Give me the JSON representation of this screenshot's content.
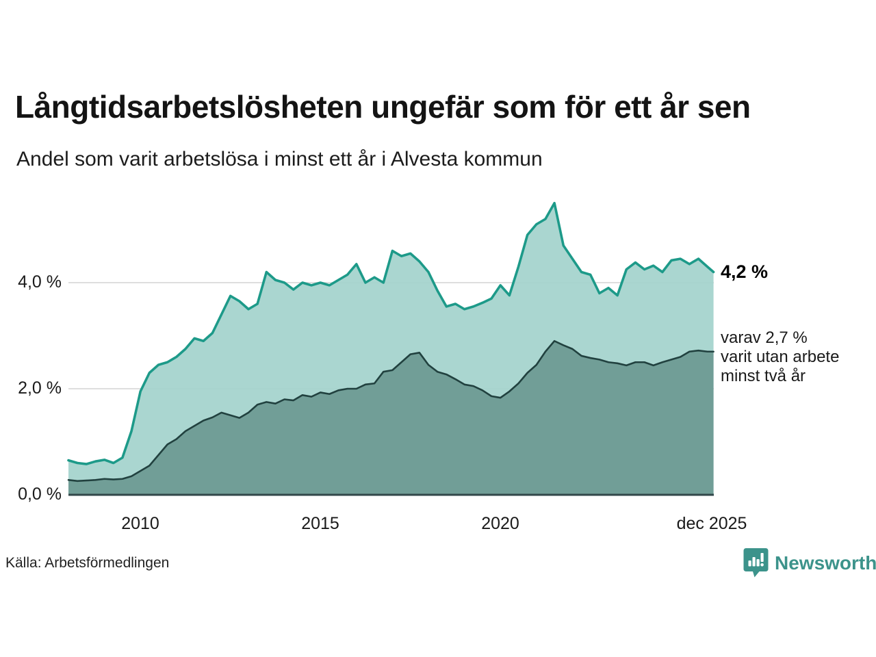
{
  "chart_data": {
    "type": "area",
    "title": "Långtidsarbetslösheten ungefär som för ett år sen",
    "subtitle": "Andel som varit arbetslösa i minst ett år i Alvesta kommun",
    "legend_position": "right-annotations",
    "grid": "horizontal-only",
    "ylim": [
      0,
      5.6
    ],
    "x_range": [
      2008,
      2025.92
    ],
    "grid_values": [
      2,
      4
    ],
    "y_ticks": [
      {
        "label": "4,0 %",
        "value": 4
      },
      {
        "label": "2,0 %",
        "value": 2
      },
      {
        "label": "0,0 %",
        "value": 0
      }
    ],
    "x_ticks": [
      {
        "label": "2010",
        "year": 2010
      },
      {
        "label": "2015",
        "year": 2015
      },
      {
        "label": "2020",
        "year": 2020
      },
      {
        "label": "dec 2025",
        "year": 2025.87
      }
    ],
    "x": [
      2008,
      2008.25,
      2008.5,
      2008.75,
      2009,
      2009.25,
      2009.5,
      2009.75,
      2010,
      2010.25,
      2010.5,
      2010.75,
      2011,
      2011.25,
      2011.5,
      2011.75,
      2012,
      2012.25,
      2012.5,
      2012.75,
      2013,
      2013.25,
      2013.5,
      2013.75,
      2014,
      2014.25,
      2014.5,
      2014.75,
      2015,
      2015.25,
      2015.5,
      2015.75,
      2016,
      2016.25,
      2016.5,
      2016.75,
      2017,
      2017.25,
      2017.5,
      2017.75,
      2018,
      2018.25,
      2018.5,
      2018.75,
      2019,
      2019.25,
      2019.5,
      2019.75,
      2020,
      2020.25,
      2020.5,
      2020.75,
      2021,
      2021.25,
      2021.5,
      2021.75,
      2022,
      2022.25,
      2022.5,
      2022.75,
      2023,
      2023.25,
      2023.5,
      2023.75,
      2024,
      2024.25,
      2024.5,
      2024.75,
      2025,
      2025.25,
      2025.5,
      2025.75,
      2025.92
    ],
    "series": [
      {
        "name": "Andel arbetslösa minst ett år",
        "end_value": 4.2,
        "values": [
          0.65,
          0.6,
          0.58,
          0.63,
          0.66,
          0.6,
          0.7,
          1.2,
          1.95,
          2.3,
          2.45,
          2.5,
          2.6,
          2.75,
          2.95,
          2.9,
          3.05,
          3.4,
          3.75,
          3.65,
          3.5,
          3.6,
          4.2,
          4.05,
          4.0,
          3.87,
          4.0,
          3.95,
          4.0,
          3.95,
          4.05,
          4.15,
          4.35,
          4.0,
          4.1,
          4.0,
          4.6,
          4.5,
          4.55,
          4.4,
          4.2,
          3.85,
          3.55,
          3.6,
          3.5,
          3.55,
          3.62,
          3.7,
          3.95,
          3.76,
          4.3,
          4.9,
          5.1,
          5.2,
          5.5,
          4.7,
          4.45,
          4.2,
          4.15,
          3.8,
          3.9,
          3.76,
          4.25,
          4.38,
          4.25,
          4.32,
          4.2,
          4.42,
          4.45,
          4.35,
          4.45,
          4.3,
          4.2
        ]
      },
      {
        "name": "Andel utan arbete minst två år",
        "end_value": 2.7,
        "values": [
          0.28,
          0.26,
          0.27,
          0.28,
          0.3,
          0.29,
          0.3,
          0.35,
          0.45,
          0.55,
          0.75,
          0.95,
          1.05,
          1.2,
          1.3,
          1.4,
          1.46,
          1.55,
          1.5,
          1.45,
          1.55,
          1.7,
          1.75,
          1.72,
          1.8,
          1.78,
          1.88,
          1.85,
          1.93,
          1.9,
          1.97,
          2.0,
          2.0,
          2.08,
          2.1,
          2.32,
          2.35,
          2.5,
          2.65,
          2.68,
          2.45,
          2.32,
          2.27,
          2.18,
          2.08,
          2.05,
          1.97,
          1.86,
          1.83,
          1.95,
          2.1,
          2.3,
          2.45,
          2.7,
          2.9,
          2.82,
          2.75,
          2.62,
          2.58,
          2.55,
          2.5,
          2.48,
          2.44,
          2.5,
          2.5,
          2.44,
          2.5,
          2.55,
          2.6,
          2.7,
          2.72,
          2.7,
          2.7
        ]
      }
    ]
  },
  "annotation": {
    "primary": "4,2 %",
    "secondary": [
      "varav 2,7 %",
      "varit utan arbete",
      "minst två år"
    ]
  },
  "footer": {
    "source": "Källa: Arbetsförmedlingen",
    "brand": "Newsworthy"
  },
  "colors": {
    "line1": "#1d9a89",
    "fill1": "#a5d4cd",
    "line2": "#21413f",
    "fill2": "#6f9c95",
    "grid": "#d4d4d4",
    "axis": "#32474a",
    "brand_teal": "#3c938b"
  }
}
